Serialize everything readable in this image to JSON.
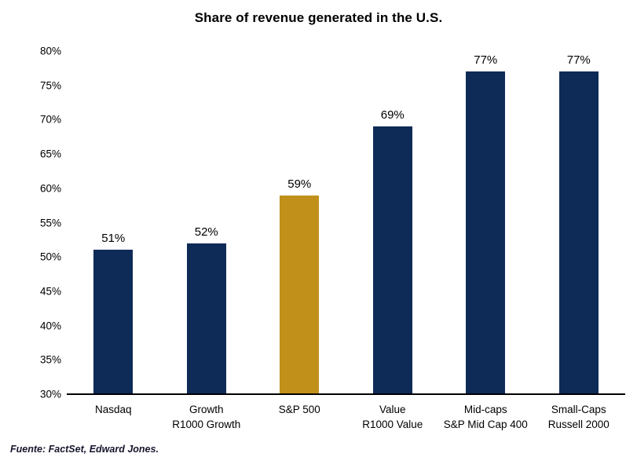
{
  "title": "Share of revenue generated in the U.S.",
  "source": "Fuente: FactSet, Edward Jones.",
  "colors": {
    "bar_navy": "#0e2a57",
    "bar_gold": "#c1901b",
    "axis_line": "#000000",
    "text": "#000000"
  },
  "chart_data": {
    "type": "bar",
    "title": "Share of revenue generated in the U.S.",
    "xlabel": "",
    "ylabel": "",
    "categories": [
      "Nasdaq",
      "Growth R1000 Growth",
      "S&P 500",
      "Value R1000 Value",
      "Mid-caps S&P Mid Cap 400",
      "Small-Caps Russell 2000"
    ],
    "category_lines": [
      [
        "Nasdaq"
      ],
      [
        "Growth",
        "R1000 Growth"
      ],
      [
        "S&P 500"
      ],
      [
        "Value",
        "R1000 Value"
      ],
      [
        "Mid-caps",
        "S&P Mid Cap 400"
      ],
      [
        "Small-Caps",
        "Russell 2000"
      ]
    ],
    "values": [
      51,
      52,
      59,
      69,
      77,
      77
    ],
    "value_labels": [
      "51%",
      "52%",
      "59%",
      "69%",
      "77%",
      "77%"
    ],
    "ylim": [
      30,
      80
    ],
    "ytick_step": 5,
    "ytick_labels": [
      "30%",
      "35%",
      "40%",
      "45%",
      "50%",
      "55%",
      "60%",
      "65%",
      "70%",
      "75%",
      "80%"
    ],
    "grid": false,
    "legend": false,
    "bar_color": "#0e2a57",
    "highlight_color": "#c1901b",
    "highlight_index": 2
  }
}
